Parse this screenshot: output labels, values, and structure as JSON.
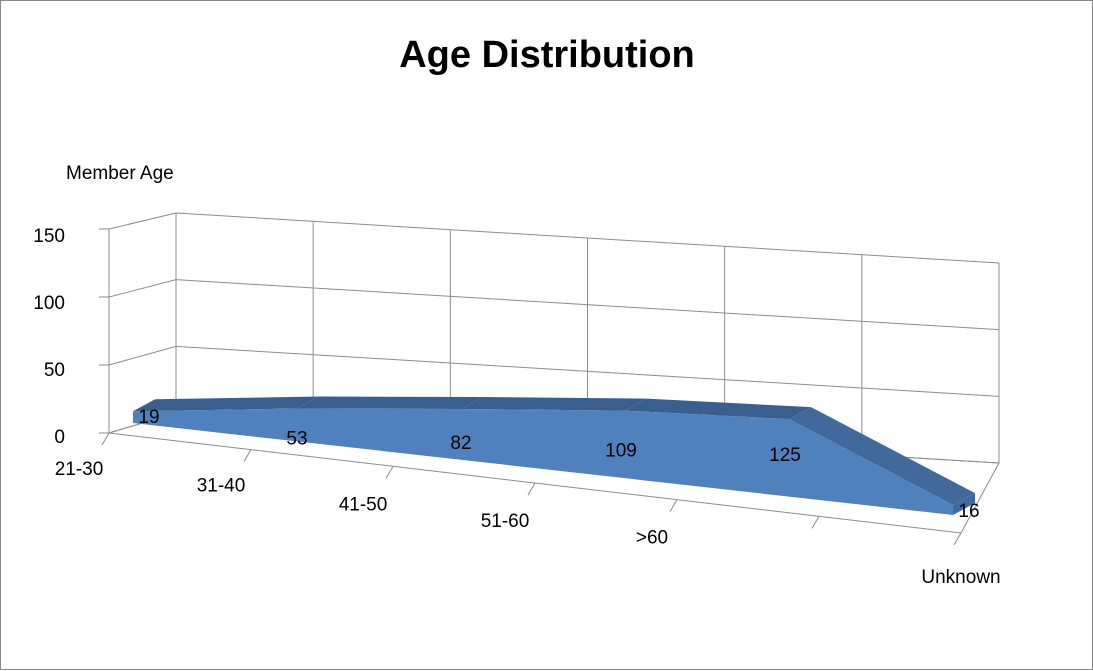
{
  "chart_data": {
    "type": "area",
    "title": "Age Distribution",
    "ylabel": "Member Age",
    "xlabel": "",
    "categories": [
      "21-30",
      "31-40",
      "41-50",
      "51-60",
      ">60",
      "Unknown"
    ],
    "series": [
      {
        "values": [
          19,
          53,
          82,
          109,
          125,
          16
        ]
      }
    ],
    "data_labels": [
      "19",
      "53",
      "82",
      "109",
      "125",
      "16"
    ],
    "y_ticks": [
      "0",
      "50",
      "100",
      "150"
    ],
    "ylim": [
      0,
      150
    ],
    "style": "3d",
    "grid": true,
    "legend": "none",
    "colors": {
      "front": "#4f81bd",
      "top": "#3a5f8f",
      "side": "#41699c",
      "grid": "#8c8c8c"
    }
  }
}
